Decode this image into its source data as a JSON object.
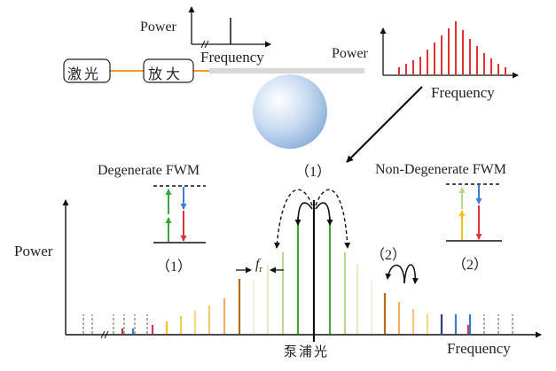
{
  "top_left_plot": {
    "ylabel": "Power",
    "xlabel": "Frequency"
  },
  "top_right_plot": {
    "ylabel": "Power",
    "xlabel": "Frequency"
  },
  "setup": {
    "laser_label": "激光",
    "amp_label": "放大"
  },
  "degenerate": {
    "title": "Degenerate FWM",
    "index": "（1）"
  },
  "nondegenerate": {
    "title": "Non-Degenerate FWM",
    "index": "（2）"
  },
  "main_plot": {
    "ylabel": "Power",
    "xlabel": "Frequency",
    "pump_label": "泵浦光",
    "fr_label": "f",
    "fr_sub": "r",
    "callout_1": "（1）",
    "callout_2": "（2）"
  },
  "colors": {
    "laser_line": "#f0a020",
    "microresonator": "#b9d3ee",
    "comb_red": "#e0303a",
    "pump": "#2a2a2a",
    "green": "#3aa53a",
    "blue": "#3b7fd0",
    "yellow": "#f2c21a"
  }
}
